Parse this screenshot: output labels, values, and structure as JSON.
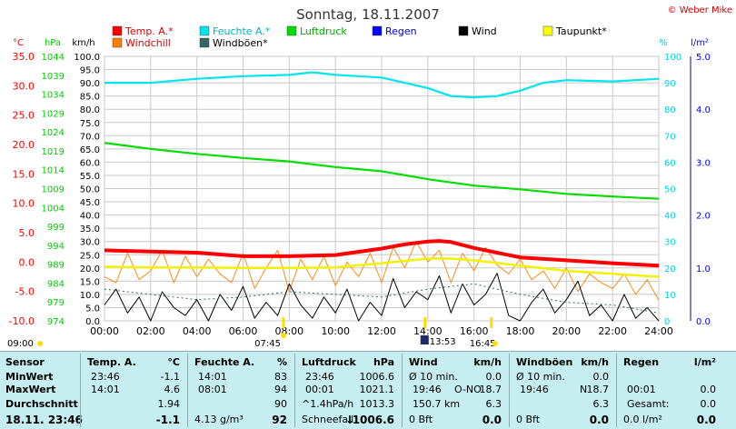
{
  "title": "Sonntag, 18.11.2007",
  "credit": "© Weber Mike",
  "chart_data": {
    "type": "line",
    "x_label_ticks": [
      "00:00",
      "02:00",
      "04:00",
      "06:00",
      "08:00",
      "10:00",
      "12:00",
      "14:00",
      "16:00",
      "18:00",
      "20:00",
      "22:00",
      "24:00"
    ],
    "xlim": [
      0,
      24
    ],
    "legend": [
      {
        "label": "Temp. A.*",
        "color": "#ff0000"
      },
      {
        "label": "Feuchte A.*",
        "color": "#00e5ee"
      },
      {
        "label": "Luftdruck",
        "color": "#00dd00"
      },
      {
        "label": "Regen",
        "color": "#0000ff"
      },
      {
        "label": "Wind",
        "color": "#000000"
      },
      {
        "label": "Taupunkt*",
        "color": "#ffff00"
      },
      {
        "label": "Windchill",
        "color": "#ff7f00"
      },
      {
        "label": "Windböen*",
        "color": "#336666"
      }
    ],
    "axes": {
      "temp": {
        "unit": "°C",
        "ticks": [
          "35.0",
          "30.0",
          "25.0",
          "20.0",
          "15.0",
          "10.0",
          "5.0",
          "0.0",
          "-5.0",
          "-10.0"
        ],
        "ylim": [
          -10,
          35
        ],
        "color": "#ff0000"
      },
      "pressure": {
        "unit": "hPa",
        "ticks": [
          "1044",
          "1039",
          "1034",
          "1029",
          "1024",
          "1019",
          "1014",
          "1009",
          "1004",
          "999",
          "994",
          "989",
          "984",
          "979",
          "974"
        ],
        "ylim": [
          974,
          1044
        ],
        "color": "#00cc00"
      },
      "wind": {
        "unit": "km/h",
        "ticks": [
          "100.0",
          "95.0",
          "90.0",
          "85.0",
          "80.0",
          "75.0",
          "70.0",
          "65.0",
          "60.0",
          "55.0",
          "50.0",
          "45.0",
          "40.0",
          "35.0",
          "30.0",
          "25.0",
          "20.0",
          "15.0",
          "10.0",
          "5.0",
          "0.0"
        ],
        "ylim": [
          0,
          100
        ],
        "color": "#000000"
      },
      "humidity": {
        "unit": "%",
        "ticks": [
          "100",
          "90",
          "80",
          "70",
          "60",
          "50",
          "40",
          "30",
          "20",
          "10",
          "0"
        ],
        "ylim": [
          0,
          100
        ],
        "color": "#00d5dd"
      },
      "rain": {
        "unit": "l/m²",
        "ticks": [
          "5.0",
          "4.0",
          "3.0",
          "2.0",
          "1.0",
          "0.0"
        ],
        "ylim": [
          0,
          5
        ],
        "color": "#0000ff"
      }
    },
    "series": [
      {
        "name": "Temp. A.*",
        "axis": "temp",
        "x": [
          0,
          2,
          4,
          6,
          8,
          10,
          12,
          13,
          14,
          14.5,
          15,
          16,
          18,
          20,
          22,
          24
        ],
        "y": [
          2.0,
          1.8,
          1.6,
          1.0,
          1.0,
          1.2,
          2.3,
          3.0,
          3.5,
          3.6,
          3.4,
          2.4,
          0.8,
          0.3,
          -0.2,
          -0.6
        ]
      },
      {
        "name": "Feuchte A.*",
        "axis": "humidity",
        "x": [
          0,
          2,
          4,
          6,
          8,
          9,
          10,
          12,
          14,
          15,
          16,
          17,
          18,
          19,
          20,
          22,
          24
        ],
        "y": [
          90,
          90,
          91.5,
          92.5,
          93,
          94,
          93,
          92,
          88,
          85,
          84.5,
          85,
          87,
          90,
          91,
          90.5,
          91.5
        ]
      },
      {
        "name": "Luftdruck",
        "axis": "pressure",
        "x": [
          0,
          2,
          4,
          6,
          8,
          10,
          12,
          14,
          16,
          18,
          20,
          22,
          24
        ],
        "y": [
          1021.1,
          1019.5,
          1018.2,
          1017.1,
          1016.2,
          1014.7,
          1013.6,
          1011.5,
          1009.8,
          1008.8,
          1007.6,
          1006.9,
          1006.3
        ]
      },
      {
        "name": "Taupunkt*",
        "axis": "temp",
        "x": [
          0,
          2,
          4,
          6,
          8,
          10,
          12,
          14,
          15,
          16,
          18,
          20,
          22,
          24
        ],
        "y": [
          -0.8,
          -0.9,
          -0.9,
          -1.0,
          -1.0,
          -0.9,
          -0.2,
          0.6,
          0.6,
          0.3,
          -0.6,
          -1.5,
          -2.0,
          -2.5
        ]
      },
      {
        "name": "Windchill",
        "axis": "temp",
        "x": [
          0,
          0.5,
          1,
          1.5,
          2,
          2.5,
          3,
          3.5,
          4,
          4.5,
          5,
          5.5,
          6,
          6.5,
          7,
          7.5,
          8,
          8.5,
          9,
          9.5,
          10,
          10.5,
          11,
          11.5,
          12,
          12.5,
          13,
          13.5,
          14,
          14.5,
          15,
          15.5,
          16,
          16.5,
          17,
          17.5,
          18,
          18.5,
          19,
          19.5,
          20,
          20.5,
          21,
          21.5,
          22,
          22.5,
          23,
          23.5,
          24
        ],
        "y": [
          -2.5,
          -3.5,
          1.5,
          -3.0,
          -1.5,
          2.0,
          -3.5,
          1.0,
          -2.5,
          0.5,
          -2.0,
          -3.5,
          1.5,
          -4.5,
          -1.0,
          2.0,
          -5.0,
          0.5,
          -3.0,
          1.0,
          -4.0,
          0.0,
          -2.5,
          1.5,
          -3.5,
          2.5,
          -1.0,
          3.5,
          0.0,
          2.0,
          -3.5,
          1.5,
          -1.5,
          2.5,
          -0.5,
          -2.0,
          0.5,
          -3.0,
          -1.5,
          -4.5,
          -1.0,
          -5.0,
          -2.0,
          -3.5,
          -4.5,
          -2.0,
          -5.5,
          -3.0,
          -6.5
        ]
      },
      {
        "name": "Wind",
        "axis": "wind",
        "x": [
          0,
          0.5,
          1,
          1.5,
          2,
          2.5,
          3,
          3.5,
          4,
          4.5,
          5,
          5.5,
          6,
          6.5,
          7,
          7.5,
          8,
          8.5,
          9,
          9.5,
          10,
          10.5,
          11,
          11.5,
          12,
          12.5,
          13,
          13.5,
          14,
          14.5,
          15,
          15.5,
          16,
          16.5,
          17,
          17.5,
          18,
          18.5,
          19,
          19.5,
          20,
          20.5,
          21,
          21.5,
          22,
          22.5,
          23,
          23.5,
          24
        ],
        "y": [
          6,
          12,
          3,
          9,
          0,
          11,
          5,
          2,
          8,
          0,
          10,
          4,
          13,
          1,
          7,
          2,
          14,
          6,
          1,
          9,
          3,
          12,
          0,
          7,
          2,
          16,
          5,
          11,
          8,
          17,
          3,
          14,
          6,
          10,
          18,
          2,
          0,
          7,
          12,
          3,
          8,
          15,
          2,
          6,
          0,
          10,
          1,
          5,
          0
        ]
      },
      {
        "name": "Windböen*",
        "axis": "wind",
        "x": [
          0,
          2,
          4,
          6,
          8,
          10,
          12,
          14,
          16,
          18,
          20,
          22,
          24
        ],
        "y": [
          12,
          10,
          8,
          9,
          11,
          10,
          9,
          12,
          14,
          10,
          7,
          6,
          3
        ]
      }
    ],
    "markers": [
      {
        "label": "09:00",
        "kind": "sunrise-prev"
      },
      {
        "label": "07:45",
        "kind": "sunrise",
        "x": 7.75
      },
      {
        "label": "13:53",
        "kind": "moonrise",
        "x": 13.88
      },
      {
        "label": "16:45",
        "kind": "sunset",
        "x": 16.75
      }
    ]
  },
  "table": {
    "sensor": {
      "header": "Sensor",
      "rows": [
        "MinWert",
        "MaxWert",
        "Durchschnitt"
      ],
      "current": "18.11. 23:46"
    },
    "temp": {
      "header": "Temp. A.",
      "unit": "°C",
      "min_time": "23:46",
      "min": "-1.1",
      "max_time": "14:01",
      "max": "4.6",
      "avg": "1.94",
      "cur": "-1.1"
    },
    "humidity": {
      "header": "Feuchte A.",
      "unit": "%",
      "min_time": "14:01",
      "min": "83",
      "max_time": "08:01",
      "max": "94",
      "avg": "90",
      "cur_extra": "4.13 g/m³",
      "cur": "92"
    },
    "pressure": {
      "header": "Luftdruck",
      "unit": "hPa",
      "min_time": "23:46",
      "min": "1006.6",
      "max_time": "00:01",
      "max": "1021.1",
      "avg_label": "^1.4hPa/h",
      "avg": "1013.3",
      "cur_label": "Schneefall",
      "cur": "1006.6"
    },
    "wind": {
      "header": "Wind",
      "unit": "km/h",
      "row1_label": "Ø 10 min.",
      "row1": "0.0",
      "row2_time": "19:46",
      "row2_dir": "O-NO",
      "row2": "18.7",
      "row3_label": "150.7 km",
      "row3": "6.3",
      "cur_label": "0 Bft",
      "cur": "0.0"
    },
    "gusts": {
      "header": "Windböen",
      "unit": "km/h",
      "row1_label": "Ø 10 min.",
      "row1": "0.0",
      "row2_time": "19:46",
      "row2_dir": "N",
      "row2": "18.7",
      "row3": "6.3",
      "cur_label": "0 Bft",
      "cur": "0.0"
    },
    "rain": {
      "header": "Regen",
      "unit": "l/m²",
      "row2_time": "00:01",
      "row2": "0.0",
      "row3_label": "Gesamt:",
      "row3": "0.0",
      "cur_label": "0.0 l/m²",
      "cur": "0.0"
    }
  }
}
